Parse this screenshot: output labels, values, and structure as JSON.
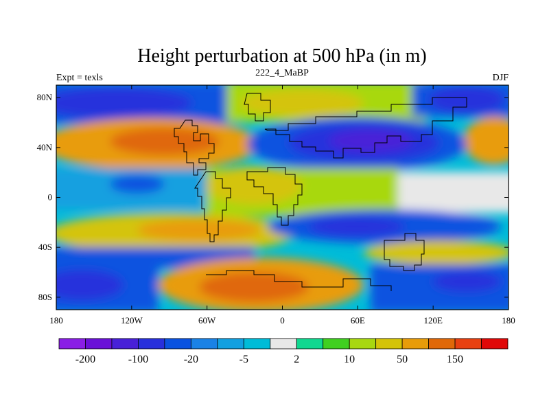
{
  "chart_data": {
    "type": "heatmap",
    "title": "Height perturbation at 500 hPa (in m)",
    "left_label": "Expt = texls",
    "center_label": "222_4_MaBP",
    "right_label": "DJF",
    "x_range": [
      -180,
      180
    ],
    "y_range": [
      -90,
      90
    ],
    "x_ticks": [
      {
        "value": -180,
        "label": "180"
      },
      {
        "value": -120,
        "label": "120W"
      },
      {
        "value": -60,
        "label": "60W"
      },
      {
        "value": 0,
        "label": "0"
      },
      {
        "value": 60,
        "label": "60E"
      },
      {
        "value": 120,
        "label": "120E"
      },
      {
        "value": 180,
        "label": "180"
      }
    ],
    "y_ticks": [
      {
        "value": 80,
        "label": "80N"
      },
      {
        "value": 40,
        "label": "40N"
      },
      {
        "value": 0,
        "label": "0"
      },
      {
        "value": -40,
        "label": "40S"
      },
      {
        "value": -80,
        "label": "80S"
      }
    ],
    "colorbar": {
      "colors": [
        "#8a1ee6",
        "#6a10d8",
        "#4820d8",
        "#2830dc",
        "#0a52e0",
        "#1a82e6",
        "#12a0e0",
        "#00bcd8",
        "#e8e8e8",
        "#10d890",
        "#40d020",
        "#a8d810",
        "#d4c408",
        "#e89c0a",
        "#e06808",
        "#e84010",
        "#e00808"
      ],
      "labels": [
        {
          "index": 1,
          "label": "-200"
        },
        {
          "index": 3,
          "label": "-100"
        },
        {
          "index": 5,
          "label": "-20"
        },
        {
          "index": 7,
          "label": "-5"
        },
        {
          "index": 9,
          "label": "2"
        },
        {
          "index": 11,
          "label": "10"
        },
        {
          "index": 13,
          "label": "50"
        },
        {
          "index": 15,
          "label": "150"
        }
      ]
    }
  }
}
